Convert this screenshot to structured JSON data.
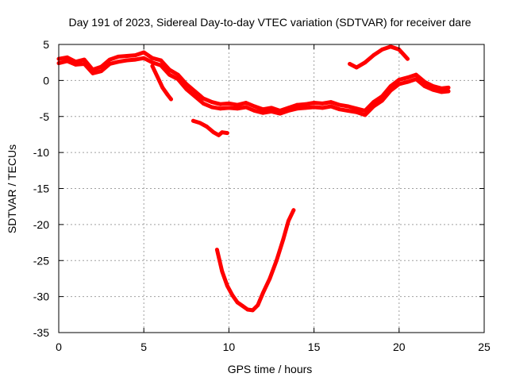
{
  "chart_data": {
    "type": "line",
    "title": "Day 191 of 2023, Sidereal Day-to-day VTEC variation (SDTVAR) for receiver dare",
    "xlabel": "GPS time / hours",
    "ylabel": "SDTVAR / TECUs",
    "xlim": [
      0,
      25
    ],
    "ylim": [
      -35,
      5
    ],
    "x_ticks": [
      0,
      5,
      10,
      15,
      20,
      25
    ],
    "y_ticks": [
      5,
      0,
      -5,
      -10,
      -15,
      -20,
      -25,
      -30,
      -35
    ],
    "grid": true,
    "series_color": "#ff0000",
    "series": [
      {
        "name": "arc-main",
        "x": [
          0.0,
          0.5,
          1.0,
          1.5,
          2.0,
          2.5,
          3.0,
          3.5,
          4.0,
          4.5,
          5.0,
          5.5,
          6.0,
          6.5,
          7.0,
          7.5,
          8.0,
          8.5,
          9.0,
          9.5,
          10.0,
          10.5,
          11.0,
          11.5,
          12.0,
          12.5,
          13.0,
          13.5,
          14.0,
          14.5,
          15.0,
          15.5,
          16.0,
          16.5,
          17.0,
          17.5,
          18.0,
          18.5,
          19.0,
          19.5,
          20.0,
          20.5,
          21.0,
          21.5,
          22.0,
          22.5,
          22.9
        ],
        "y": [
          3.0,
          3.2,
          2.6,
          2.9,
          1.5,
          1.9,
          2.9,
          3.3,
          3.4,
          3.5,
          3.9,
          3.1,
          2.8,
          1.5,
          0.8,
          -0.5,
          -1.5,
          -2.5,
          -3.0,
          -3.3,
          -3.2,
          -3.4,
          -3.1,
          -3.6,
          -4.0,
          -3.8,
          -4.2,
          -3.8,
          -3.4,
          -3.3,
          -3.1,
          -3.2,
          -3.0,
          -3.4,
          -3.6,
          -3.9,
          -4.2,
          -3.0,
          -2.2,
          -0.8,
          0.1,
          0.4,
          0.8,
          -0.2,
          -0.8,
          -1.1,
          -1.0
        ]
      },
      {
        "name": "arc-main-b",
        "x": [
          0.0,
          0.5,
          1.0,
          1.5,
          2.0,
          2.5,
          3.0,
          3.5,
          4.0,
          4.5,
          5.0,
          5.5,
          6.0,
          6.5,
          7.0,
          7.5,
          8.0,
          8.5,
          9.0,
          9.5,
          10.0,
          10.5,
          11.0,
          11.5,
          12.0,
          12.5,
          13.0,
          13.5,
          14.0,
          14.5,
          15.0,
          15.5,
          16.0,
          16.5,
          17.0,
          17.5,
          18.0,
          18.5,
          19.0,
          19.5,
          20.0,
          20.5,
          21.0,
          21.5,
          22.0,
          22.5,
          22.9
        ],
        "y": [
          2.4,
          2.7,
          2.2,
          2.3,
          1.0,
          1.3,
          2.3,
          2.6,
          2.8,
          2.9,
          3.1,
          2.5,
          2.1,
          0.8,
          0.2,
          -1.2,
          -2.2,
          -3.2,
          -3.7,
          -3.9,
          -3.8,
          -3.9,
          -3.7,
          -4.2,
          -4.5,
          -4.3,
          -4.6,
          -4.2,
          -3.9,
          -3.8,
          -3.7,
          -3.8,
          -3.6,
          -4.0,
          -4.2,
          -4.4,
          -4.8,
          -3.6,
          -2.8,
          -1.4,
          -0.5,
          -0.2,
          0.2,
          -0.8,
          -1.3,
          -1.6,
          -1.5
        ]
      },
      {
        "name": "arc-main-c",
        "x": [
          5.5,
          5.8,
          6.1,
          6.4,
          6.6
        ],
        "y": [
          2.0,
          0.5,
          -1.0,
          -2.0,
          -2.6
        ]
      },
      {
        "name": "arc-high",
        "x": [
          17.1,
          17.5,
          18.0,
          18.5,
          19.0,
          19.5,
          20.0,
          20.5
        ],
        "y": [
          2.3,
          1.8,
          2.5,
          3.5,
          4.3,
          4.7,
          4.3,
          3.0
        ]
      },
      {
        "name": "arc-short",
        "x": [
          7.9,
          8.3,
          8.7,
          9.1,
          9.4,
          9.6,
          9.9
        ],
        "y": [
          -5.6,
          -5.9,
          -6.4,
          -7.2,
          -7.6,
          -7.2,
          -7.3
        ]
      },
      {
        "name": "arc-dip",
        "x": [
          9.3,
          9.6,
          9.9,
          10.2,
          10.5,
          10.8,
          11.1,
          11.4,
          11.7,
          12.0,
          12.4,
          12.8,
          13.2,
          13.5,
          13.8
        ],
        "y": [
          -23.5,
          -26.5,
          -28.5,
          -29.8,
          -30.8,
          -31.3,
          -31.8,
          -31.9,
          -31.2,
          -29.5,
          -27.5,
          -25.0,
          -22.0,
          -19.5,
          -18.0
        ]
      }
    ]
  }
}
